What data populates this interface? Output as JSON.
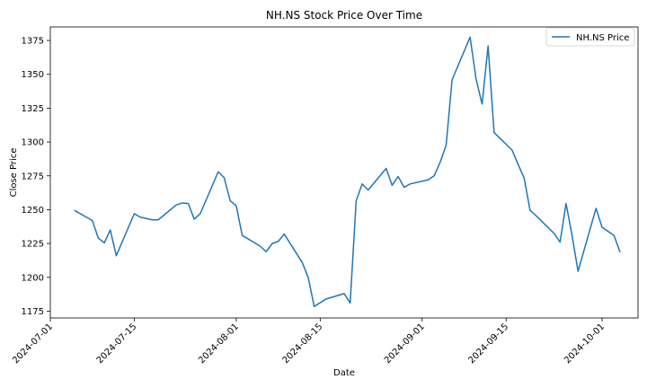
{
  "chart_data": {
    "type": "line",
    "title": "NH.NS Stock Price Over Time",
    "xlabel": "Date",
    "ylabel": "Close Price",
    "xlim": [
      "2024-07-01",
      "2024-10-07"
    ],
    "ylim": [
      1170,
      1385
    ],
    "x_ticks": [
      "2024-07-01",
      "2024-07-15",
      "2024-08-01",
      "2024-08-15",
      "2024-09-01",
      "2024-09-15",
      "2024-10-01"
    ],
    "y_ticks": [
      1175,
      1200,
      1225,
      1250,
      1275,
      1300,
      1325,
      1350,
      1375
    ],
    "grid": false,
    "legend": "top-right",
    "color": "#1f77b4",
    "series": [
      {
        "name": "NH.NS Price",
        "x": [
          "2024-07-05",
          "2024-07-08",
          "2024-07-09",
          "2024-07-10",
          "2024-07-11",
          "2024-07-12",
          "2024-07-15",
          "2024-07-16",
          "2024-07-17",
          "2024-07-18",
          "2024-07-19",
          "2024-07-22",
          "2024-07-23",
          "2024-07-24",
          "2024-07-25",
          "2024-07-26",
          "2024-07-29",
          "2024-07-30",
          "2024-07-31",
          "2024-08-01",
          "2024-08-02",
          "2024-08-05",
          "2024-08-06",
          "2024-08-07",
          "2024-08-08",
          "2024-08-09",
          "2024-08-12",
          "2024-08-13",
          "2024-08-14",
          "2024-08-16",
          "2024-08-19",
          "2024-08-20",
          "2024-08-21",
          "2024-08-22",
          "2024-08-23",
          "2024-08-26",
          "2024-08-27",
          "2024-08-28",
          "2024-08-29",
          "2024-08-30",
          "2024-09-02",
          "2024-09-03",
          "2024-09-04",
          "2024-09-05",
          "2024-09-06",
          "2024-09-09",
          "2024-09-10",
          "2024-09-11",
          "2024-09-12",
          "2024-09-13",
          "2024-09-16",
          "2024-09-17",
          "2024-09-18",
          "2024-09-19",
          "2024-09-20",
          "2024-09-23",
          "2024-09-24",
          "2024-09-25",
          "2024-09-26",
          "2024-09-27",
          "2024-09-30",
          "2024-10-01",
          "2024-10-03",
          "2024-10-04"
        ],
        "values": [
          1249.5,
          1242,
          1229,
          1225.5,
          1235,
          1216,
          1247,
          1244.5,
          1243.5,
          1242.5,
          1242.5,
          1253.5,
          1255,
          1254.5,
          1243,
          1247,
          1278,
          1273.5,
          1256.5,
          1253,
          1231,
          1223,
          1219,
          1225,
          1226.5,
          1232,
          1211,
          1200,
          1178.5,
          1184,
          1188,
          1181,
          1256.5,
          1269,
          1264.5,
          1280.5,
          1268,
          1274.5,
          1266.5,
          1269,
          1272,
          1275,
          1285,
          1297.5,
          1346,
          1377.5,
          1346.5,
          1328,
          1371,
          1307,
          1294,
          1283.5,
          1273.5,
          1249.5,
          1245.5,
          1232.5,
          1226,
          1254.5,
          1231,
          1204.5,
          1251,
          1237,
          1231,
          1218.5
        ]
      }
    ]
  }
}
